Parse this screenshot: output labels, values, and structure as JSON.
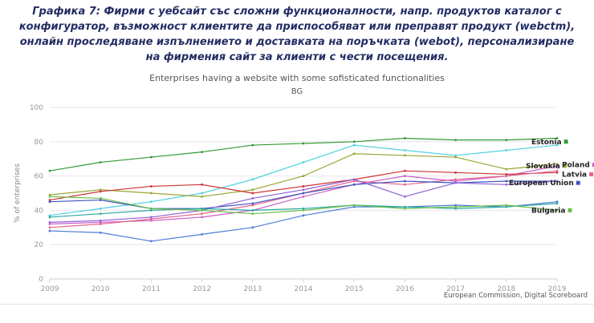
{
  "caption": {
    "text": "Графика 7: Фирми с уебсайт със сложни функционалности, напр. продуктов каталог с конфигуратор, възможност клиентите да приспособяват или преправят продукт (webctm), онлайн проследяване изпълнението и доставката на поръчката (webot), персонализиране на фирмения сайт за клиенти с чести посещения."
  },
  "chart_data": {
    "type": "line",
    "title": "Enterprises having a website with some sofisticated functionalities",
    "subtitle": "BG",
    "source": "European Commission, Digital Scoreboard",
    "xlabel": "",
    "ylabel": "% of enterprises",
    "ylim": [
      0,
      100
    ],
    "yticks": [
      0,
      20,
      40,
      60,
      80,
      100
    ],
    "x": [
      2009,
      2010,
      2011,
      2012,
      2013,
      2014,
      2015,
      2016,
      2017,
      2018,
      2019
    ],
    "grid": "horizontal",
    "legend_position": "right-inline",
    "series": [
      {
        "name": "Estonia",
        "color": "#339933",
        "values": [
          63,
          68,
          71,
          74,
          78,
          79,
          80,
          82,
          81,
          81,
          82
        ],
        "label": {
          "x": 662,
          "value": 80
        }
      },
      {
        "name": null,
        "color": "#4dd0e1",
        "values": [
          37,
          41,
          45,
          50,
          58,
          68,
          78,
          75,
          72,
          75,
          78
        ]
      },
      {
        "name": "Slovakia",
        "color": "#9ba534",
        "values": [
          49,
          52,
          50,
          48,
          52,
          60,
          73,
          72,
          71,
          64,
          67
        ],
        "label": {
          "x": 655,
          "value": 66
        }
      },
      {
        "name": "Poland",
        "color": "#c95ec9",
        "values": [
          32,
          33,
          34,
          36,
          40,
          48,
          55,
          60,
          57,
          60,
          66
        ],
        "label": {
          "x": 700,
          "value": 66.5
        }
      },
      {
        "name": null,
        "color": "#cc3333",
        "values": [
          46,
          51,
          54,
          55,
          50,
          54,
          58,
          63,
          62,
          61,
          62
        ]
      },
      {
        "name": "Latvia",
        "color": "#e8638c",
        "values": [
          30,
          32,
          35,
          38,
          43,
          50,
          57,
          55,
          58,
          60,
          63
        ],
        "label": {
          "x": 700,
          "value": 61
        }
      },
      {
        "name": "European Union",
        "color": "#4153c2",
        "values": [
          45,
          46,
          41,
          41,
          44,
          50,
          55,
          57,
          56,
          57,
          57
        ],
        "label": {
          "x": 634,
          "value": 56
        }
      },
      {
        "name": null,
        "color": "#8f62d8",
        "values": [
          33,
          34,
          36,
          40,
          47,
          52,
          58,
          48,
          56,
          55,
          57
        ]
      },
      {
        "name": null,
        "color": "#4c7bd9",
        "values": [
          28,
          27,
          22,
          26,
          30,
          37,
          42,
          42,
          43,
          42,
          45
        ]
      },
      {
        "name": null,
        "color": "#2aa9a0",
        "values": [
          36,
          38,
          40,
          41,
          40,
          41,
          43,
          42,
          41,
          42,
          44
        ]
      },
      {
        "name": "Bulgaria",
        "color": "#6abf4b",
        "values": [
          48,
          47,
          41,
          40,
          38,
          40,
          43,
          41,
          42,
          43,
          40
        ],
        "label": {
          "x": 662,
          "value": 40
        }
      }
    ]
  }
}
